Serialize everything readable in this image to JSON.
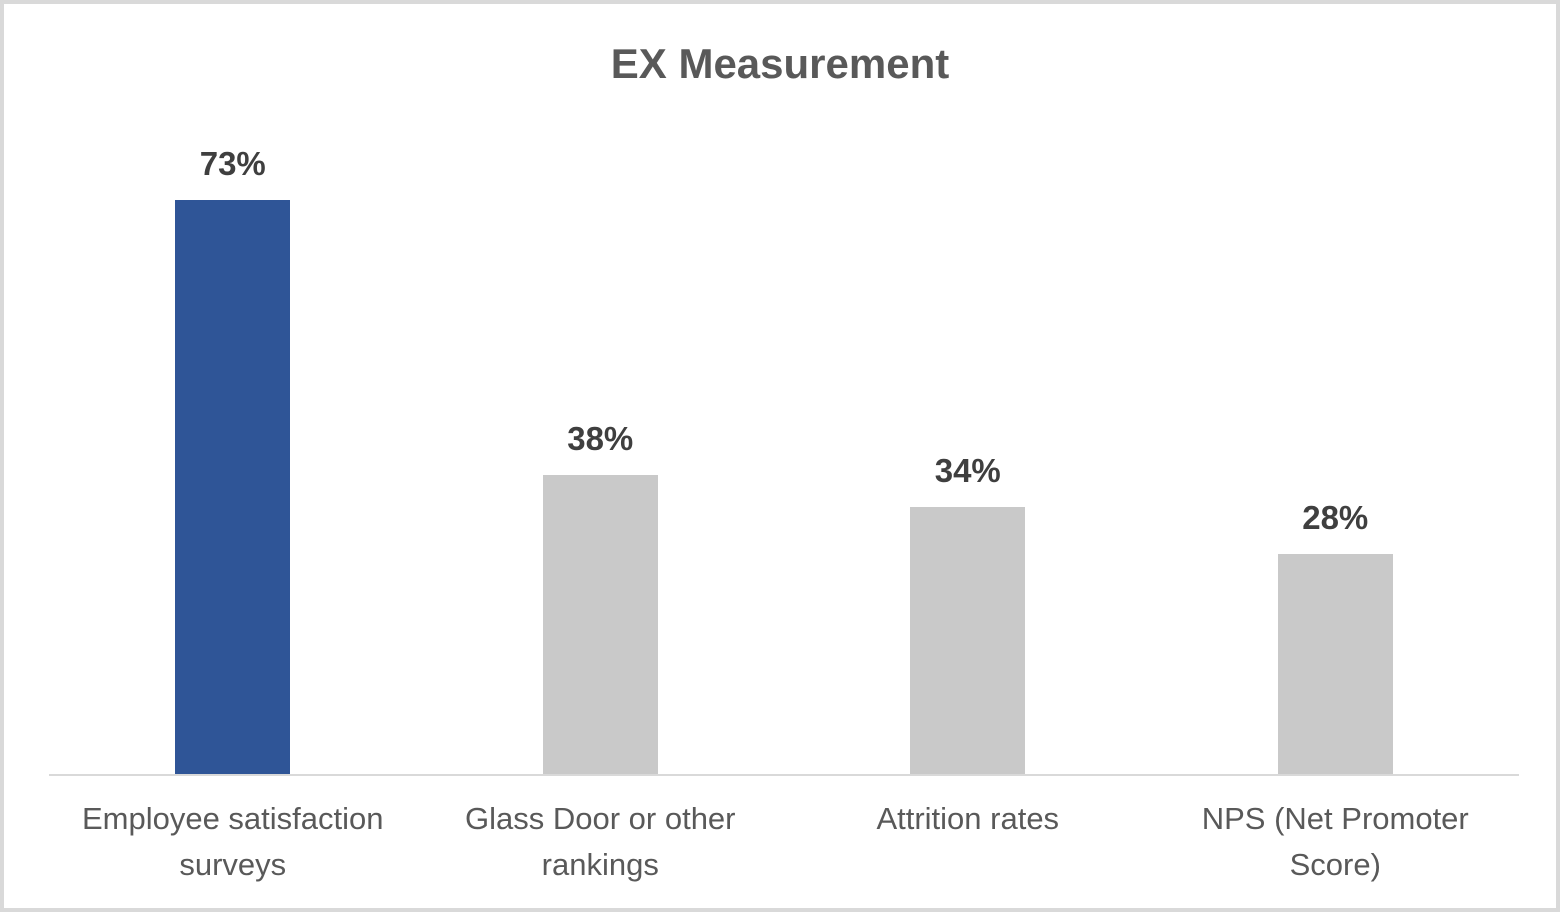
{
  "chart_data": {
    "type": "bar",
    "title": "EX Measurement",
    "categories": [
      "Employee satisfaction surveys",
      "Glass Door or other rankings",
      "Attrition rates",
      "NPS (Net Promoter Score)"
    ],
    "values": [
      73,
      38,
      34,
      28
    ],
    "data_labels": [
      "73%",
      "38%",
      "34%",
      "28%"
    ],
    "bar_colors": [
      "#2F5597",
      "#C9C9C9",
      "#C9C9C9",
      "#C9C9C9"
    ],
    "xlabel": "",
    "ylabel": "",
    "grid": false,
    "legend": false,
    "y_axis_visible": false,
    "x_axis_line_color": "#D9D9D9",
    "title_color": "#595959",
    "data_label_color": "#3F3F3F",
    "category_label_color": "#595959",
    "frame_border_color": "#D9D9D9",
    "background_color": "#FFFFFF"
  }
}
